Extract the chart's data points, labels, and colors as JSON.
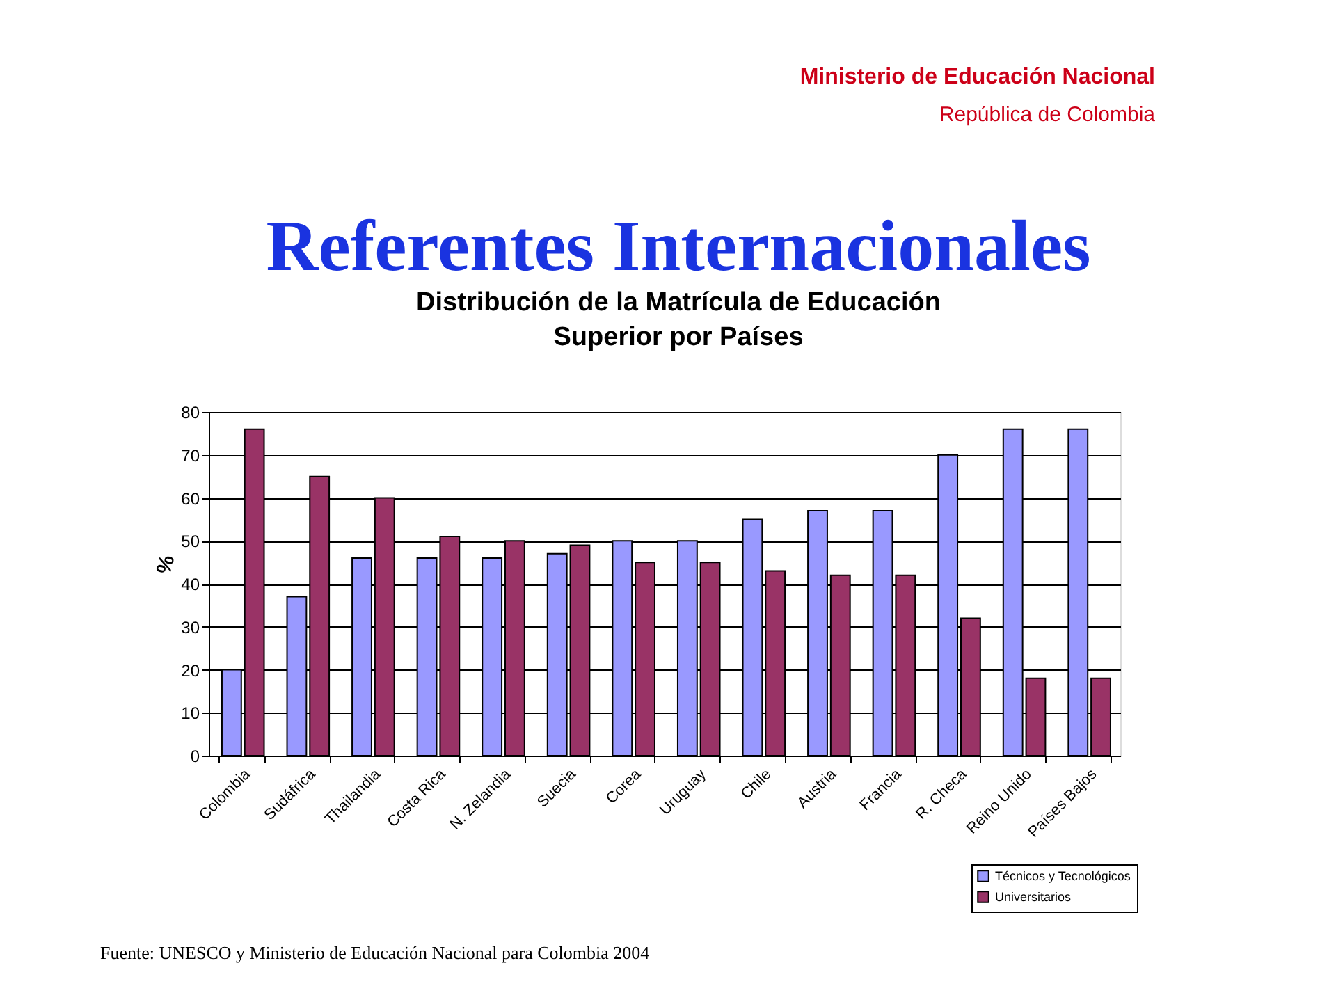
{
  "chart_data": {
    "type": "bar",
    "title": [
      "Distribución de la Matrícula de Educación",
      "Superior por Países"
    ],
    "ylabel": "%",
    "categories": [
      "Colombia",
      "Sudáfrica",
      "Thailandia",
      "Costa Rica",
      "N. Zelandia",
      "Suecia",
      "Corea",
      "Uruguay",
      "Chile",
      "Austria",
      "Francia",
      "R. Checa",
      "Reino Unido",
      "Países Bajos"
    ],
    "series": [
      {
        "name": "Técnicos y Tecnológicos",
        "color": "#9999ff",
        "values": [
          20,
          37,
          46,
          46,
          46,
          47,
          50,
          50,
          55,
          57,
          57,
          70,
          76,
          76
        ]
      },
      {
        "name": "Universitarios",
        "color": "#993366",
        "values": [
          76,
          65,
          60,
          51,
          50,
          49,
          45,
          45,
          43,
          42,
          42,
          32,
          18,
          18
        ]
      }
    ],
    "ylim": [
      0,
      80
    ],
    "yticks": [
      0,
      10,
      20,
      30,
      40,
      50,
      60,
      70,
      80
    ],
    "grid": "y",
    "legend": "bottom right",
    "annotations": [
      "Ministerio de Educación Nacional",
      "República de Colombia",
      "Referentes Internacionales",
      "Fuente: UNESCO y Ministerio  de Educación Nacional para Colombia 2004"
    ]
  }
}
